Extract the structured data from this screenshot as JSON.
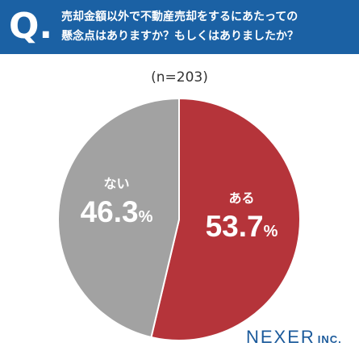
{
  "question": {
    "mark": "Q.",
    "text": "売却金額以外で不動産売却をするにあたっての\n懸念点はありますか？もしくはありましたか？"
  },
  "sample_label": "(n=203)",
  "logo": {
    "main": "NEXER",
    "suffix": "INC."
  },
  "colors": {
    "header": "#1b61a4",
    "slice_yes": "#b5343a",
    "slice_no": "#a2a2a2"
  },
  "chart_data": {
    "type": "pie",
    "title": "",
    "slices": [
      {
        "label": "ある",
        "value": 53.7,
        "display": "53.7",
        "unit": "%",
        "color": "#b5343a"
      },
      {
        "label": "ない",
        "value": 46.3,
        "display": "46.3",
        "unit": "%",
        "color": "#a2a2a2"
      }
    ]
  }
}
